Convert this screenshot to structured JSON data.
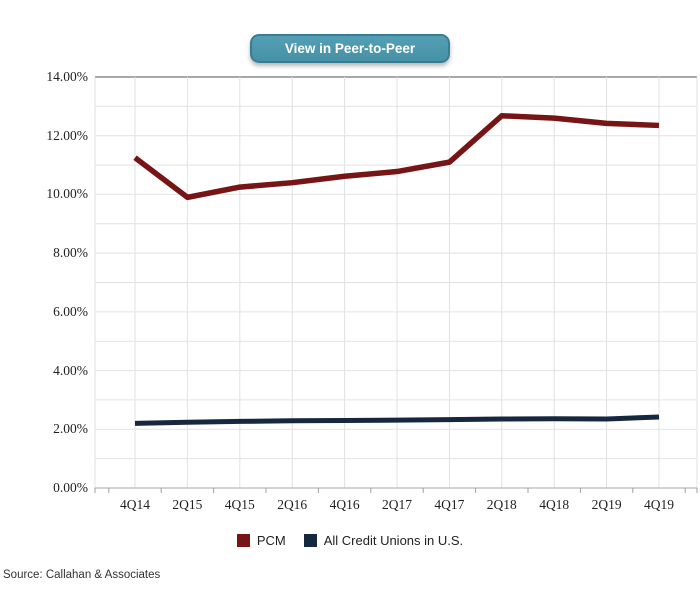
{
  "button": {
    "label": "View in Peer-to-Peer"
  },
  "source_note": "Source: Callahan & Associates",
  "colors": {
    "button_bg": "#4a96ab",
    "button_border": "#3a7d93",
    "pcm_red": "#771416",
    "all_cu_navy": "#162740",
    "grid_light": "#e2e2e2",
    "grid_top_border": "#a8a8a8",
    "axis_line": "#b9b9b9",
    "tick_mark": "#9f9f9f"
  },
  "chart_data": {
    "type": "line",
    "title": "",
    "xlabel": "",
    "ylabel": "",
    "categories": [
      "4Q14",
      "2Q15",
      "4Q15",
      "2Q16",
      "4Q16",
      "2Q17",
      "4Q17",
      "2Q18",
      "4Q18",
      "2Q19",
      "4Q19"
    ],
    "series": [
      {
        "name": "PCM",
        "color": "#771416",
        "stroke_width": 5.5,
        "values": [
          11.25,
          9.9,
          10.25,
          10.4,
          10.62,
          10.78,
          11.1,
          12.68,
          12.6,
          12.42,
          12.35
        ]
      },
      {
        "name": "All Credit Unions in U.S.",
        "color": "#162740",
        "stroke_width": 5,
        "values": [
          2.2,
          2.24,
          2.27,
          2.29,
          2.3,
          2.31,
          2.33,
          2.35,
          2.36,
          2.35,
          2.42
        ]
      }
    ],
    "ylim": [
      0,
      14
    ],
    "grid": true,
    "gridline_step_pct": 1,
    "legend_position": "bottom",
    "yticks": [
      {
        "v": 0,
        "label": "0.00%"
      },
      {
        "v": 2,
        "label": "2.00%"
      },
      {
        "v": 4,
        "label": "4.00%"
      },
      {
        "v": 6,
        "label": "6.00%"
      },
      {
        "v": 8,
        "label": "8.00%"
      },
      {
        "v": 10,
        "label": "10.00%"
      },
      {
        "v": 12,
        "label": "12.00%"
      },
      {
        "v": 14,
        "label": "14.00%"
      }
    ]
  }
}
